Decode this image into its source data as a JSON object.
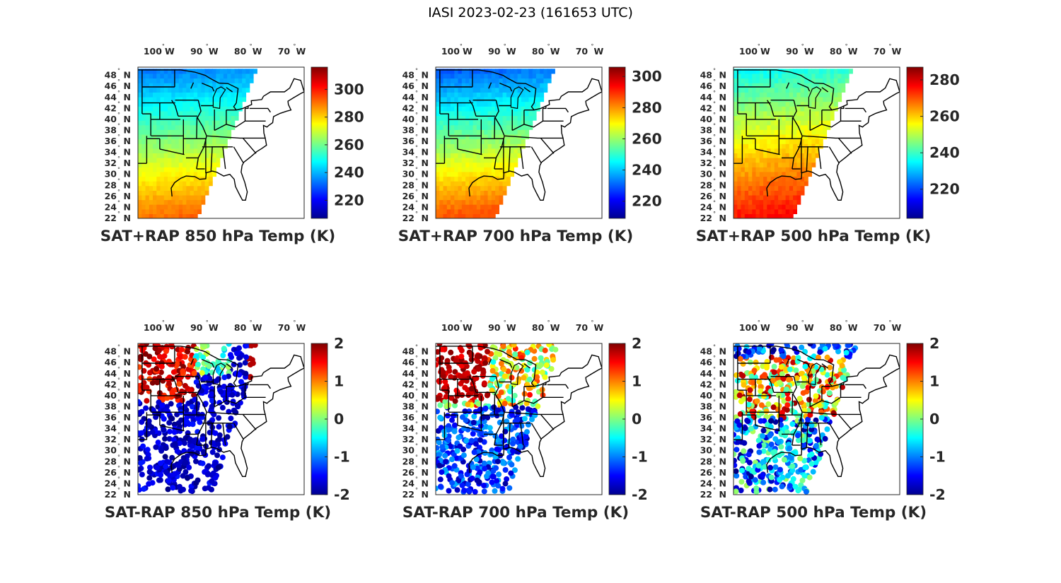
{
  "figure_title": "IASI 2023-02-23 (161653 UTC)",
  "colors": {
    "axis": "#262626",
    "map_lines": "#000000",
    "background": "#ffffff"
  },
  "chart_data": [
    {
      "type": "heatmap",
      "id": "sat-rap-850",
      "title": "SAT+RAP 850 hPa Temp (K)",
      "variable": "850 hPa temperature (satellite + RAP)",
      "units": "K",
      "lon_ticks": [
        "100",
        "90",
        "80",
        "70"
      ],
      "lon_hemisphere": "W",
      "lat_ticks": [
        "48",
        "46",
        "44",
        "42",
        "40",
        "38",
        "36",
        "34",
        "32",
        "30",
        "28",
        "26",
        "24",
        "22"
      ],
      "lat_hemisphere": "N",
      "xlim": [
        -105,
        -67
      ],
      "ylim": [
        22,
        49.5
      ],
      "colorbar": {
        "colormap": "jet",
        "range": [
          207,
          316
        ],
        "ticks": [
          "220",
          "240",
          "260",
          "280",
          "300"
        ]
      }
    },
    {
      "type": "heatmap",
      "id": "sat-rap-700",
      "title": "SAT+RAP 700 hPa Temp (K)",
      "variable": "700 hPa temperature (satellite + RAP)",
      "units": "K",
      "lon_ticks": [
        "100",
        "90",
        "80",
        "70"
      ],
      "lon_hemisphere": "W",
      "lat_ticks": [
        "48",
        "46",
        "44",
        "42",
        "40",
        "38",
        "36",
        "34",
        "32",
        "30",
        "28",
        "26",
        "24",
        "22"
      ],
      "lat_hemisphere": "N",
      "xlim": [
        -105,
        -67
      ],
      "ylim": [
        22,
        49.5
      ],
      "colorbar": {
        "colormap": "jet",
        "range": [
          209,
          306
        ],
        "ticks": [
          "220",
          "240",
          "260",
          "280",
          "300"
        ]
      }
    },
    {
      "type": "heatmap",
      "id": "sat-rap-500",
      "title": "SAT+RAP 500 hPa Temp (K)",
      "variable": "500 hPa temperature (satellite + RAP)",
      "units": "K",
      "lon_ticks": [
        "100",
        "90",
        "80",
        "70"
      ],
      "lon_hemisphere": "W",
      "lat_ticks": [
        "48",
        "46",
        "44",
        "42",
        "40",
        "38",
        "36",
        "34",
        "32",
        "30",
        "28",
        "26",
        "24",
        "22"
      ],
      "lat_hemisphere": "N",
      "xlim": [
        -105,
        -67
      ],
      "ylim": [
        22,
        49.5
      ],
      "colorbar": {
        "colormap": "jet",
        "range": [
          204,
          287
        ],
        "ticks": [
          "220",
          "240",
          "260",
          "280"
        ]
      }
    },
    {
      "type": "scatter",
      "id": "sat-minus-rap-850",
      "title": "SAT-RAP 850 hPa Temp (K)",
      "variable": "850 hPa temperature difference (satellite - RAP)",
      "units": "K",
      "lon_ticks": [
        "100",
        "90",
        "80",
        "70"
      ],
      "lon_hemisphere": "W",
      "lat_ticks": [
        "48",
        "46",
        "44",
        "42",
        "40",
        "38",
        "36",
        "34",
        "32",
        "30",
        "28",
        "26",
        "24",
        "22"
      ],
      "lat_hemisphere": "N",
      "xlim": [
        -105,
        -67
      ],
      "ylim": [
        22,
        49.5
      ],
      "colorbar": {
        "colormap": "jet",
        "range": [
          -2,
          2
        ],
        "ticks": [
          "2",
          "1",
          "0",
          "-1",
          "-2"
        ]
      }
    },
    {
      "type": "scatter",
      "id": "sat-minus-rap-700",
      "title": "SAT-RAP 700 hPa Temp (K)",
      "variable": "700 hPa temperature difference (satellite - RAP)",
      "units": "K",
      "lon_ticks": [
        "100",
        "90",
        "80",
        "70"
      ],
      "lon_hemisphere": "W",
      "lat_ticks": [
        "48",
        "46",
        "44",
        "42",
        "40",
        "38",
        "36",
        "34",
        "32",
        "30",
        "28",
        "26",
        "24",
        "22"
      ],
      "lat_hemisphere": "N",
      "xlim": [
        -105,
        -67
      ],
      "ylim": [
        22,
        49.5
      ],
      "colorbar": {
        "colormap": "jet",
        "range": [
          -2,
          2
        ],
        "ticks": [
          "2",
          "1",
          "0",
          "-1",
          "-2"
        ]
      }
    },
    {
      "type": "scatter",
      "id": "sat-minus-rap-500",
      "title": "SAT-RAP 500 hPa Temp (K)",
      "variable": "500 hPa temperature difference (satellite - RAP)",
      "units": "K",
      "lon_ticks": [
        "100",
        "90",
        "80",
        "70"
      ],
      "lon_hemisphere": "W",
      "lat_ticks": [
        "48",
        "46",
        "44",
        "42",
        "40",
        "38",
        "36",
        "34",
        "32",
        "30",
        "28",
        "26",
        "24",
        "22"
      ],
      "lat_hemisphere": "N",
      "xlim": [
        -105,
        -67
      ],
      "ylim": [
        22,
        49.5
      ],
      "colorbar": {
        "colormap": "jet",
        "range": [
          -2,
          2
        ],
        "ticks": [
          "2",
          "1",
          "0",
          "-1",
          "-2"
        ]
      }
    }
  ]
}
